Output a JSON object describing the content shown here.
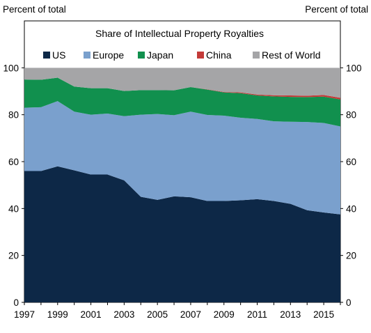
{
  "chart_data": {
    "type": "area",
    "stacked": true,
    "title": "Share of Intellectual Property Royalties",
    "y_unit_left": "Percent of total",
    "y_unit_right": "Percent of total",
    "xlabel": "",
    "ylabel": "Percent of total",
    "x": [
      1997,
      1998,
      1999,
      2000,
      2001,
      2002,
      2003,
      2004,
      2005,
      2006,
      2007,
      2008,
      2009,
      2010,
      2011,
      2012,
      2013,
      2014,
      2015,
      2016
    ],
    "x_tick_labels": [
      "1997",
      "1999",
      "2001",
      "2003",
      "2005",
      "2007",
      "2009",
      "2011",
      "2013",
      "2015"
    ],
    "y_ticks": [
      "0",
      "20",
      "40",
      "60",
      "80",
      "100"
    ],
    "ylim": [
      0,
      120
    ],
    "xlim": [
      1997,
      2016
    ],
    "grid": false,
    "legend_position": "top",
    "series": [
      {
        "name": "US",
        "color": "#0d2847",
        "values": [
          56.0,
          56.0,
          58.0,
          56.3,
          54.5,
          54.5,
          52.0,
          45.0,
          43.7,
          45.2,
          44.8,
          43.2,
          43.2,
          43.5,
          44.0,
          43.2,
          42.0,
          39.3,
          38.3,
          37.5
        ]
      },
      {
        "name": "Europe",
        "color": "#7aa0cd",
        "values": [
          27.0,
          27.2,
          27.8,
          25.0,
          25.5,
          26.0,
          27.4,
          35.0,
          36.6,
          34.6,
          36.5,
          36.7,
          36.4,
          35.2,
          34.2,
          34.0,
          35.0,
          37.6,
          38.2,
          37.5
        ]
      },
      {
        "name": "Japan",
        "color": "#11904e",
        "values": [
          12.0,
          11.7,
          10.0,
          10.7,
          11.3,
          10.8,
          10.7,
          10.5,
          10.2,
          10.6,
          10.5,
          10.8,
          9.9,
          10.5,
          10.0,
          10.6,
          10.6,
          10.6,
          11.2,
          11.5
        ]
      },
      {
        "name": "China",
        "color": "#c33a38",
        "values": [
          0.0,
          0.0,
          0.0,
          0.0,
          0.0,
          0.0,
          0.0,
          0.0,
          0.0,
          0.0,
          0.0,
          0.1,
          0.2,
          0.3,
          0.4,
          0.5,
          0.6,
          0.6,
          0.7,
          0.7
        ]
      },
      {
        "name": "Rest of World",
        "color": "#a5a5a7",
        "values": [
          5.0,
          5.1,
          4.2,
          8.0,
          8.7,
          8.7,
          9.9,
          9.5,
          9.5,
          9.6,
          8.2,
          9.2,
          10.3,
          10.5,
          11.4,
          11.7,
          11.8,
          11.9,
          11.6,
          12.8
        ]
      }
    ]
  }
}
